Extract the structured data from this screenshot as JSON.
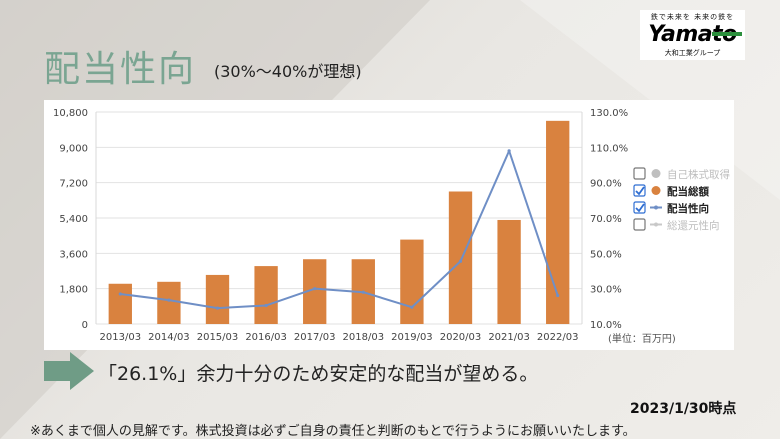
{
  "header": {
    "title": "配当性向",
    "subtitle": "(30%〜40%が理想)"
  },
  "logo": {
    "tagline": "鉄で未来を 未来の鉄を",
    "name": "Yamato",
    "group": "大和工業グループ"
  },
  "colors": {
    "accent": "#7aa592",
    "bar": "#d9823f",
    "line": "#6f8fc6",
    "check": "#2f6ed2"
  },
  "chart_data": {
    "type": "bar+line",
    "categories": [
      "2013/03",
      "2014/03",
      "2015/03",
      "2016/03",
      "2017/03",
      "2018/03",
      "2019/03",
      "2020/03",
      "2021/03",
      "2022/03"
    ],
    "series": [
      {
        "name": "配当総額",
        "type": "bar",
        "axis": "left",
        "values": [
          2050,
          2150,
          2500,
          2950,
          3300,
          3300,
          4300,
          6750,
          5300,
          10350
        ]
      },
      {
        "name": "配当性向",
        "type": "line",
        "axis": "right",
        "values": [
          27.0,
          23.5,
          19.0,
          20.5,
          30.0,
          28.0,
          19.5,
          45.5,
          108.0,
          26.1
        ]
      }
    ],
    "y_left": {
      "ylim": [
        0,
        10800
      ],
      "ticks": [
        "0",
        "1,800",
        "3,600",
        "5,400",
        "7,200",
        "9,000",
        "10,800"
      ]
    },
    "y_right": {
      "ylim": [
        10,
        130
      ],
      "ticks": [
        "10.0%",
        "30.0%",
        "50.0%",
        "70.0%",
        "90.0%",
        "110.0%",
        "130.0%"
      ]
    },
    "legend": {
      "position": "right",
      "items": [
        {
          "label": "自己株式取得",
          "checked": false,
          "marker": "dot",
          "color": "#bfbfbf",
          "active": false
        },
        {
          "label": "配当総額",
          "checked": true,
          "marker": "dot",
          "color": "#d9823f",
          "active": true
        },
        {
          "label": "配当性向",
          "checked": true,
          "marker": "line",
          "color": "#6f8fc6",
          "active": true
        },
        {
          "label": "総還元性向",
          "checked": false,
          "marker": "line",
          "color": "#c8c8c8",
          "active": false
        }
      ]
    },
    "unit_note": "(単位：百万円)",
    "grid": true
  },
  "message": "「26.1%」余力十分のため安定的な配当が望める。",
  "as_of": "2023/1/30時点",
  "footnote": "※あくまで個人の見解です。株式投資は必ずご自身の責任と判断のもとで行うようにお願いいたします。"
}
